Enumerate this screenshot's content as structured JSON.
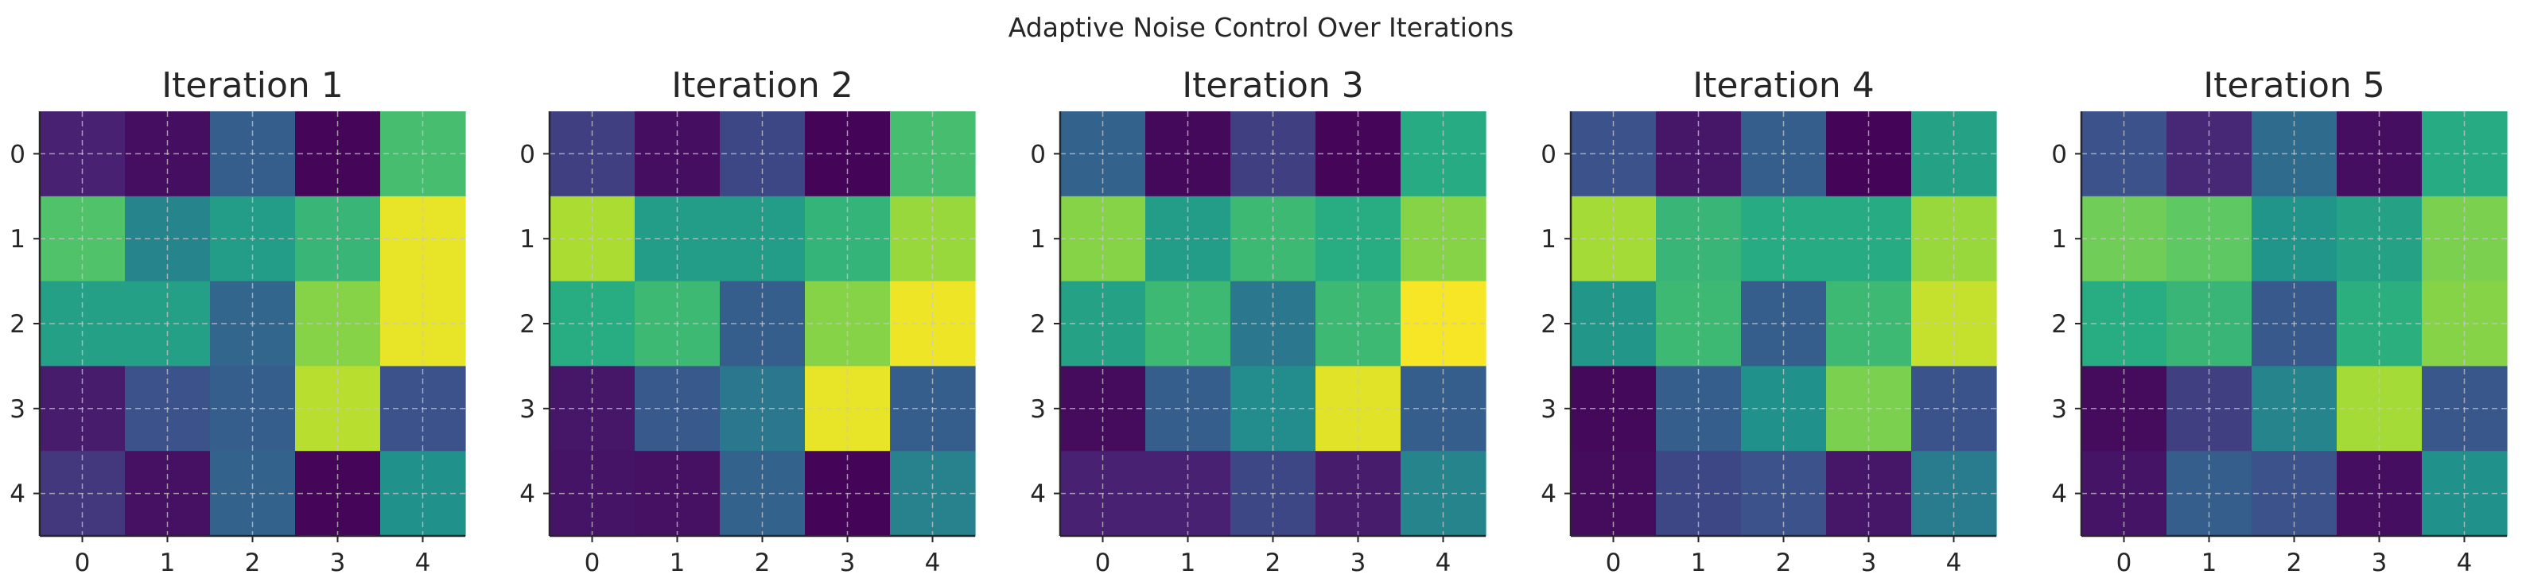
{
  "figure": {
    "suptitle": "Adaptive Noise Control Over Iterations"
  },
  "chart_data": [
    {
      "type": "heatmap",
      "title": "Iteration 1",
      "colormap": "viridis",
      "grid": true,
      "x_ticks": [
        "0",
        "1",
        "2",
        "3",
        "4"
      ],
      "y_ticks": [
        "0",
        "1",
        "2",
        "3",
        "4"
      ],
      "values": [
        [
          0.12,
          0.05,
          0.3,
          0.02,
          0.7
        ],
        [
          0.72,
          0.45,
          0.55,
          0.67,
          0.97
        ],
        [
          0.57,
          0.57,
          0.33,
          0.82,
          0.97
        ],
        [
          0.1,
          0.25,
          0.3,
          0.9,
          0.25
        ],
        [
          0.18,
          0.06,
          0.32,
          0.02,
          0.5
        ]
      ]
    },
    {
      "type": "heatmap",
      "title": "Iteration 2",
      "colormap": "viridis",
      "grid": true,
      "x_ticks": [
        "0",
        "1",
        "2",
        "3",
        "4"
      ],
      "y_ticks": [
        "0",
        "1",
        "2",
        "3",
        "4"
      ],
      "values": [
        [
          0.2,
          0.05,
          0.22,
          0.01,
          0.7
        ],
        [
          0.88,
          0.55,
          0.55,
          0.66,
          0.85
        ],
        [
          0.63,
          0.68,
          0.3,
          0.82,
          0.98
        ],
        [
          0.08,
          0.28,
          0.4,
          0.97,
          0.3
        ],
        [
          0.07,
          0.06,
          0.32,
          0.01,
          0.44
        ]
      ]
    },
    {
      "type": "heatmap",
      "title": "Iteration 3",
      "colormap": "viridis",
      "grid": true,
      "x_ticks": [
        "0",
        "1",
        "2",
        "3",
        "4"
      ],
      "y_ticks": [
        "0",
        "1",
        "2",
        "3",
        "4"
      ],
      "values": [
        [
          0.32,
          0.03,
          0.2,
          0.02,
          0.62
        ],
        [
          0.82,
          0.55,
          0.68,
          0.63,
          0.82
        ],
        [
          0.58,
          0.68,
          0.4,
          0.68,
          0.99
        ],
        [
          0.04,
          0.3,
          0.48,
          0.96,
          0.3
        ],
        [
          0.12,
          0.12,
          0.22,
          0.1,
          0.45
        ]
      ]
    },
    {
      "type": "heatmap",
      "title": "Iteration 4",
      "colormap": "viridis",
      "grid": true,
      "x_ticks": [
        "0",
        "1",
        "2",
        "3",
        "4"
      ],
      "y_ticks": [
        "0",
        "1",
        "2",
        "3",
        "4"
      ],
      "values": [
        [
          0.25,
          0.08,
          0.3,
          0.01,
          0.58
        ],
        [
          0.87,
          0.67,
          0.62,
          0.62,
          0.85
        ],
        [
          0.53,
          0.68,
          0.3,
          0.68,
          0.92
        ],
        [
          0.03,
          0.3,
          0.5,
          0.8,
          0.26
        ],
        [
          0.04,
          0.22,
          0.25,
          0.08,
          0.42
        ]
      ]
    },
    {
      "type": "heatmap",
      "title": "Iteration 5",
      "colormap": "viridis",
      "grid": true,
      "x_ticks": [
        "0",
        "1",
        "2",
        "3",
        "4"
      ],
      "y_ticks": [
        "0",
        "1",
        "2",
        "3",
        "4"
      ],
      "values": [
        [
          0.25,
          0.14,
          0.35,
          0.05,
          0.62
        ],
        [
          0.78,
          0.75,
          0.52,
          0.58,
          0.8
        ],
        [
          0.63,
          0.67,
          0.28,
          0.64,
          0.82
        ],
        [
          0.04,
          0.2,
          0.45,
          0.87,
          0.27
        ],
        [
          0.07,
          0.3,
          0.25,
          0.05,
          0.5
        ]
      ]
    }
  ]
}
